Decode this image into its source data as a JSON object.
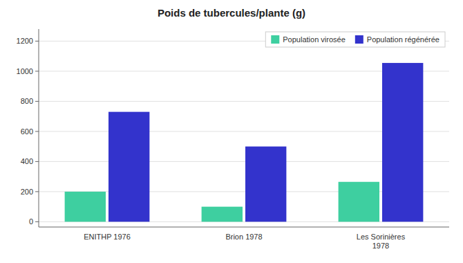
{
  "chart_data": {
    "type": "bar",
    "title": "Poids de tubercules/plante (g)",
    "categories": [
      "ENITHP 1976",
      "Brion 1978",
      "Les Sorinières\n1978"
    ],
    "series": [
      {
        "name": "Population virosée",
        "color": "#3ECFA0",
        "values": [
          200,
          100,
          265
        ]
      },
      {
        "name": "Population régénérée",
        "color": "#3333CC",
        "values": [
          730,
          500,
          1055
        ]
      }
    ],
    "ylim": [
      -35,
      1280
    ],
    "yticks": [
      0,
      200,
      400,
      600,
      800,
      1000,
      1200
    ],
    "grid": true,
    "legend": "upper right"
  }
}
